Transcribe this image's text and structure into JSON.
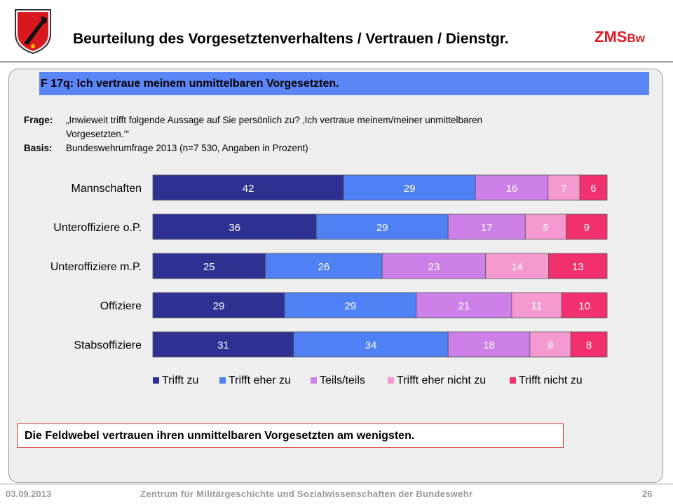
{
  "header": {
    "title": "Beurteilung des Vorgesetztenverhaltens / Vertrauen / Dienstgr.",
    "brand_main": "ZMS",
    "brand_sub": "Bw"
  },
  "question": {
    "heading": "F 17q: Ich vertraue meinem unmittelbaren Vorgesetzten.",
    "frage_label": "Frage:",
    "frage_text": "„Inwieweit trifft folgende Aussage auf Sie persönlich zu? ‚Ich vertraue meinem/meiner unmittelbaren  Vorgesetzten.‘“",
    "basis_label": "Basis:",
    "basis_text": "Bundeswehrumfrage  2013  (n=7 530,  Angaben  in Prozent)"
  },
  "chart_data": {
    "type": "bar",
    "orientation": "horizontal",
    "stacked": true,
    "categories": [
      "Mannschaften",
      "Unteroffiziere o.P.",
      "Unteroffiziere m.P.",
      "Offiziere",
      "Stabsoffiziere"
    ],
    "series": [
      {
        "name": "Trifft zu",
        "color": "#2e3192",
        "values": [
          42,
          36,
          25,
          29,
          31
        ]
      },
      {
        "name": "Trifft eher zu",
        "color": "#4f81f5",
        "values": [
          29,
          29,
          26,
          29,
          34
        ]
      },
      {
        "name": "Teils/teils",
        "color": "#cc80e8",
        "values": [
          16,
          17,
          23,
          21,
          18
        ]
      },
      {
        "name": "Trifft eher nicht zu",
        "color": "#f59ad0",
        "values": [
          7,
          9,
          14,
          11,
          9
        ]
      },
      {
        "name": "Trifft nicht zu",
        "color": "#f0306f",
        "values": [
          6,
          9,
          13,
          10,
          8
        ]
      }
    ],
    "data_labels": true,
    "legend": "bottom"
  },
  "note": "Die Feldwebel vertrauen ihren unmittelbaren Vorgesetzten am wenigsten.",
  "footer": {
    "date": "03.09.2013",
    "organization": "Zentrum für Militärgeschichte und Sozialwissenschaften der Bundeswehr",
    "page": "26"
  },
  "colors": {
    "question_bar": "#5b86f7",
    "brand": "#e11b22",
    "note_border": "#d9322b",
    "panel_bg": "#efefef"
  }
}
